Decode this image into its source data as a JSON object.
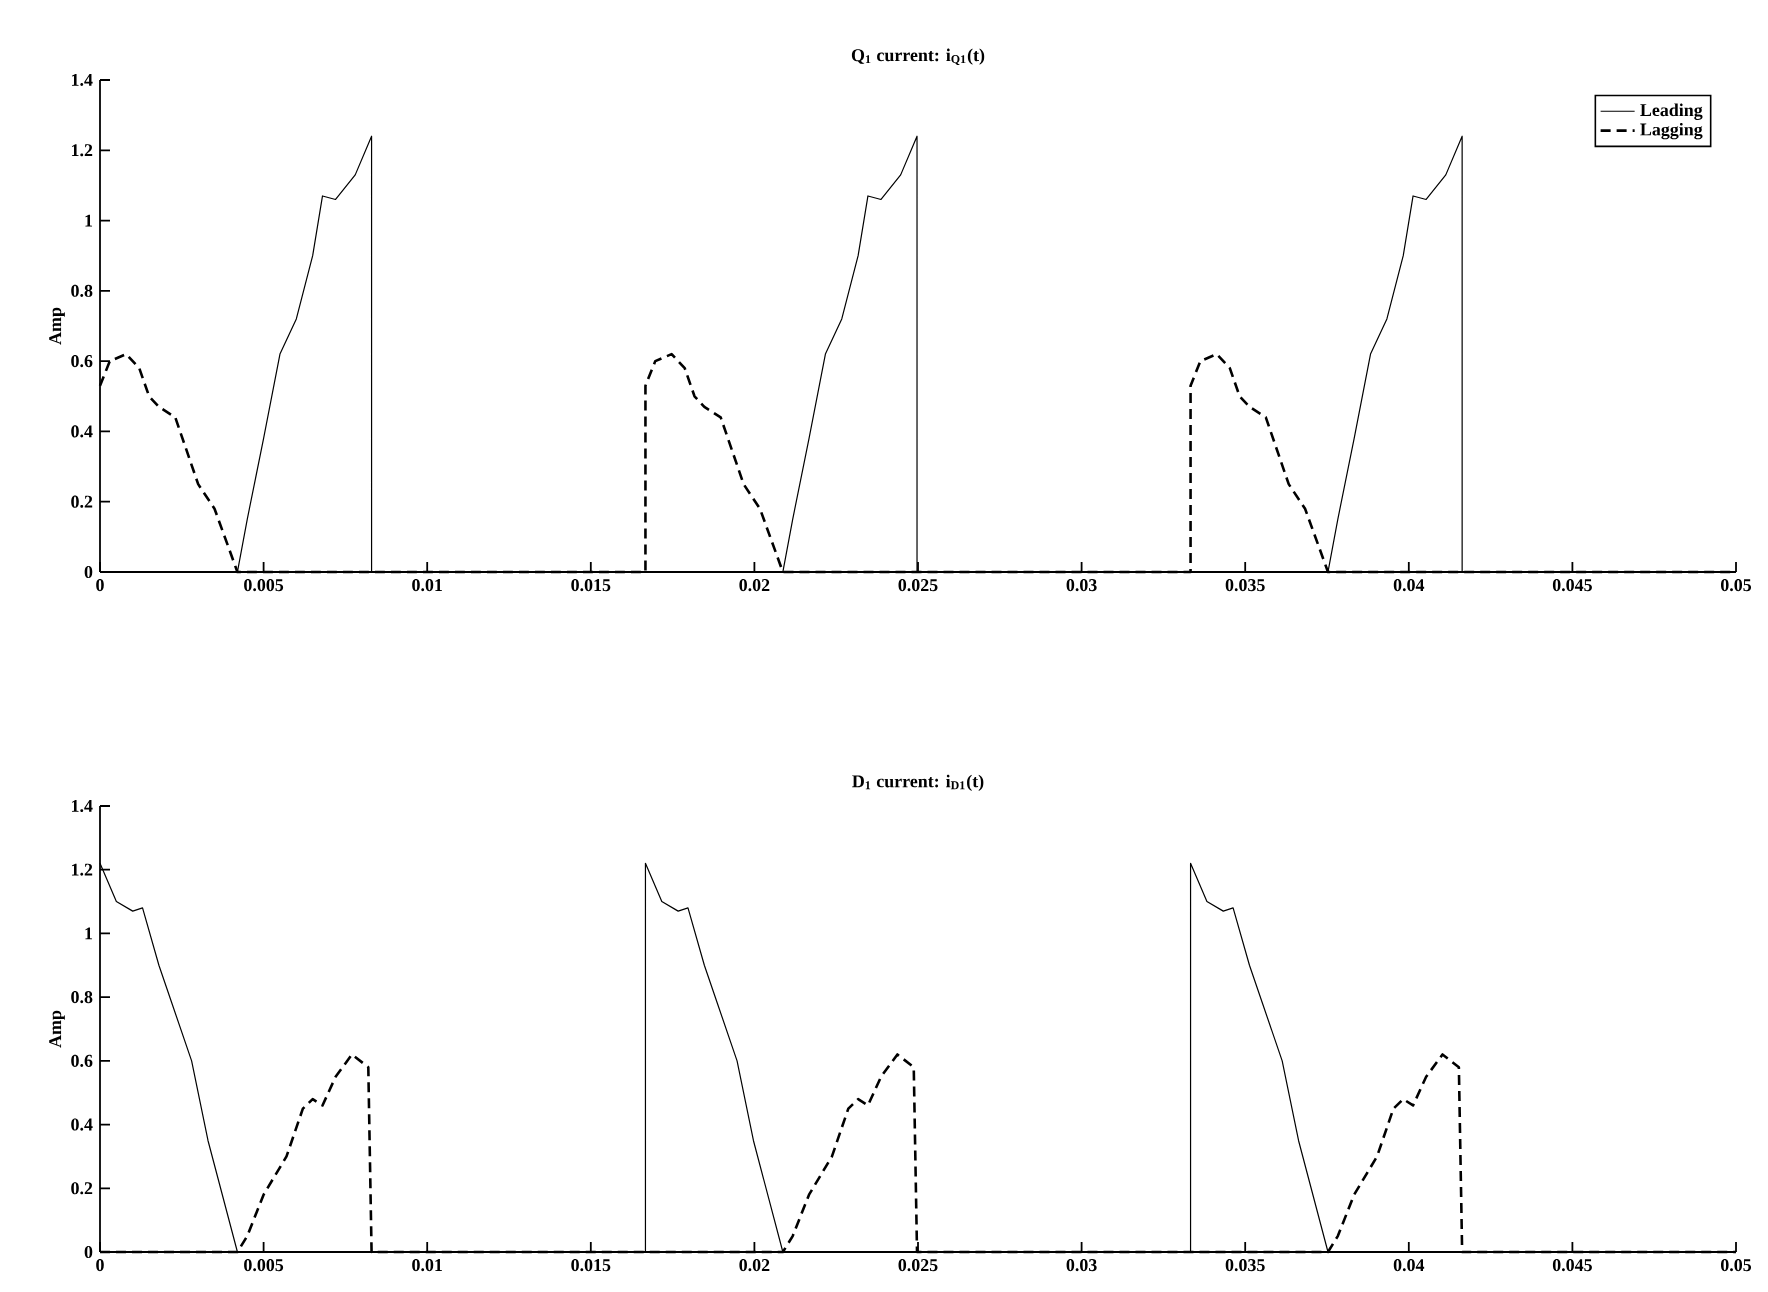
{
  "chart_data": [
    {
      "type": "line",
      "title": "Q$_{1}$ current: i$_{Q1}$(t)",
      "ylabel": "Amp",
      "xlim": [
        0,
        0.05
      ],
      "ylim": [
        0,
        1.4
      ],
      "xticks": [
        0,
        0.005,
        0.01,
        0.015,
        0.02,
        0.025,
        0.03,
        0.035,
        0.04,
        0.045,
        0.05
      ],
      "yticks": [
        0,
        0.2,
        0.4,
        0.6,
        0.8,
        1,
        1.2,
        1.4
      ],
      "legend": "top right",
      "series": [
        {
          "name": "Leading",
          "color": "#000000",
          "line_style": "solid",
          "x": [
            0,
            0.0042,
            0.0045,
            0.005,
            0.0055,
            0.006,
            0.0065,
            0.0068,
            0.0072,
            0.0078,
            0.0083,
            0.0083,
            0.02087,
            0.02117,
            0.02167,
            0.02217,
            0.02267,
            0.02317,
            0.02347,
            0.02387,
            0.02447,
            0.02497,
            0.02497,
            0.03753,
            0.03783,
            0.03833,
            0.03883,
            0.03933,
            0.03983,
            0.04013,
            0.04053,
            0.04113,
            0.04163,
            0.04163,
            0.05
          ],
          "values": [
            0,
            0,
            0.15,
            0.38,
            0.62,
            0.72,
            0.9,
            1.07,
            1.06,
            1.13,
            1.24,
            0,
            0,
            0.15,
            0.38,
            0.62,
            0.72,
            0.9,
            1.07,
            1.06,
            1.13,
            1.24,
            0,
            0,
            0.15,
            0.38,
            0.62,
            0.72,
            0.9,
            1.07,
            1.06,
            1.13,
            1.24,
            0,
            0
          ]
        },
        {
          "name": "Lagging",
          "color": "#000000",
          "line_style": "dashed",
          "x": [
            0,
            0.0003,
            0.0008,
            0.0012,
            0.0015,
            0.0018,
            0.0023,
            0.003,
            0.0035,
            0.0042,
            0.01667,
            0.01667,
            0.01697,
            0.01747,
            0.01787,
            0.01817,
            0.01847,
            0.01897,
            0.01967,
            0.02017,
            0.02087,
            0.03333,
            0.03333,
            0.03363,
            0.03413,
            0.03453,
            0.03483,
            0.03513,
            0.03563,
            0.03633,
            0.03683,
            0.03753,
            0.05
          ],
          "values": [
            0.53,
            0.6,
            0.62,
            0.58,
            0.5,
            0.47,
            0.44,
            0.25,
            0.18,
            0,
            0,
            0.53,
            0.6,
            0.62,
            0.58,
            0.5,
            0.47,
            0.44,
            0.25,
            0.18,
            0,
            0,
            0.53,
            0.6,
            0.62,
            0.58,
            0.5,
            0.47,
            0.44,
            0.25,
            0.18,
            0,
            0
          ]
        }
      ]
    },
    {
      "type": "line",
      "title": "D$_{1}$ current: i$_{D1}$(t)",
      "ylabel": "Amp",
      "xlim": [
        0,
        0.05
      ],
      "ylim": [
        0,
        1.4
      ],
      "xticks": [
        0,
        0.005,
        0.01,
        0.015,
        0.02,
        0.025,
        0.03,
        0.035,
        0.04,
        0.045,
        0.05
      ],
      "yticks": [
        0,
        0.2,
        0.4,
        0.6,
        0.8,
        1,
        1.2,
        1.4
      ],
      "series": [
        {
          "color": "#000000",
          "line_style": "solid",
          "x": [
            0,
            0.0005,
            0.001,
            0.0013,
            0.0018,
            0.0022,
            0.0028,
            0.0033,
            0.0042,
            0.01667,
            0.01667,
            0.01717,
            0.01767,
            0.01797,
            0.01847,
            0.01887,
            0.01947,
            0.01997,
            0.02087,
            0.03333,
            0.03333,
            0.03383,
            0.03433,
            0.03463,
            0.03513,
            0.03553,
            0.03613,
            0.03663,
            0.03753,
            0.05
          ],
          "values": [
            1.22,
            1.1,
            1.07,
            1.08,
            0.9,
            0.78,
            0.6,
            0.35,
            0,
            0,
            1.22,
            1.1,
            1.07,
            1.08,
            0.9,
            0.78,
            0.6,
            0.35,
            0,
            0,
            1.22,
            1.1,
            1.07,
            1.08,
            0.9,
            0.78,
            0.6,
            0.35,
            0,
            0
          ]
        },
        {
          "color": "#000000",
          "line_style": "dashed",
          "x": [
            0,
            0.0042,
            0.0045,
            0.005,
            0.0057,
            0.0062,
            0.0065,
            0.0068,
            0.0072,
            0.0077,
            0.0082,
            0.0083,
            0.02087,
            0.02117,
            0.02167,
            0.02237,
            0.02287,
            0.02317,
            0.02347,
            0.02387,
            0.02437,
            0.02487,
            0.02497,
            0.03753,
            0.03783,
            0.03833,
            0.03903,
            0.03953,
            0.03983,
            0.04013,
            0.04053,
            0.04103,
            0.04153,
            0.04163,
            0.05
          ],
          "values": [
            0,
            0,
            0.05,
            0.18,
            0.3,
            0.45,
            0.48,
            0.46,
            0.55,
            0.62,
            0.58,
            0,
            0,
            0.05,
            0.18,
            0.3,
            0.45,
            0.48,
            0.46,
            0.55,
            0.62,
            0.58,
            0,
            0,
            0.05,
            0.18,
            0.3,
            0.45,
            0.48,
            0.46,
            0.55,
            0.62,
            0.58,
            0,
            0
          ]
        }
      ]
    }
  ]
}
